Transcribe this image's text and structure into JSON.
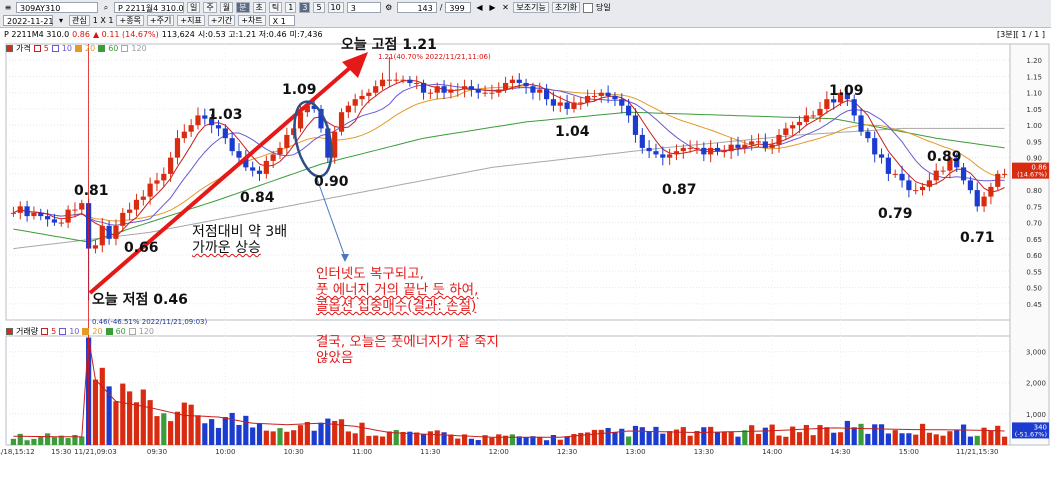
{
  "toolbar": {
    "code": "309AY310",
    "name": "P 2211월4 310.0",
    "date": "2022-11-21",
    "interest_label": "관심",
    "interval_label": "1 X 1",
    "btns": [
      "+종목",
      "+주기",
      "+지표",
      "+기간",
      "+차트"
    ],
    "period_tabs": [
      "일",
      "주",
      "월",
      "분",
      "초",
      "틱"
    ],
    "active_period": "분",
    "intervals": [
      "1",
      "3",
      "5",
      "10"
    ],
    "active_interval": "3",
    "interval_select": "3",
    "count": "143",
    "total": "399",
    "view_label": "보조기능",
    "reset_label": "초기화",
    "single_label": "당일",
    "zoom": "X 1"
  },
  "info": {
    "symbol": "P 2211M4 310.0",
    "price": "0.86",
    "change": "▲ 0.11 (14.67%)",
    "volume": "113,624",
    "ohlc": "시:0.53 고:1.21 저:0.46",
    "di": "미:7,436",
    "page": "[3분][ 1 / 1 ]"
  },
  "legend_price": {
    "label": "가격",
    "ma": [
      "5",
      "10",
      "20",
      "60",
      "120"
    ]
  },
  "legend_volume": {
    "label": "거래량",
    "ma": [
      "5",
      "10",
      "20",
      "60",
      "120"
    ]
  },
  "colors": {
    "up": "#d92b10",
    "down": "#1c3ccf",
    "ma5": "#c71f1f",
    "ma10": "#6a5ad6",
    "ma20": "#e39a28",
    "ma60": "#3c9c3a",
    "ma120": "#a8a8a8"
  },
  "chart_data": {
    "type": "candlestick",
    "interval": "3m",
    "ylim": [
      0.4,
      1.25
    ],
    "yticks": [
      0.45,
      0.5,
      0.55,
      0.6,
      0.65,
      0.7,
      0.75,
      0.8,
      0.85,
      0.9,
      0.95,
      1.0,
      1.05,
      1.1,
      1.15,
      1.2
    ],
    "volume_ylim": [
      0,
      3500
    ],
    "volume_ticks": [
      1000,
      2000,
      3000
    ],
    "time_labels": [
      {
        "i": 0,
        "t": "11/18,15:12"
      },
      {
        "i": 7,
        "t": "15:30"
      },
      {
        "i": 12,
        "t": "11/21,09:03"
      },
      {
        "i": 21,
        "t": "09:30"
      },
      {
        "i": 31,
        "t": "10:00"
      },
      {
        "i": 41,
        "t": "10:30"
      },
      {
        "i": 51,
        "t": "11:00"
      },
      {
        "i": 61,
        "t": "11:30"
      },
      {
        "i": 71,
        "t": "12:00"
      },
      {
        "i": 81,
        "t": "12:30"
      },
      {
        "i": 91,
        "t": "13:00"
      },
      {
        "i": 101,
        "t": "13:30"
      },
      {
        "i": 111,
        "t": "14:00"
      },
      {
        "i": 121,
        "t": "14:30"
      },
      {
        "i": 131,
        "t": "15:00"
      },
      {
        "i": 141,
        "t": "11/21,15:30"
      }
    ],
    "anchors": [
      [
        0,
        0.74
      ],
      [
        4,
        0.72
      ],
      [
        6,
        0.7
      ],
      [
        10,
        0.76
      ],
      [
        11,
        0.47
      ],
      [
        12,
        0.62
      ],
      [
        13,
        0.7
      ],
      [
        14,
        0.66
      ],
      [
        18,
        0.77
      ],
      [
        22,
        0.85
      ],
      [
        24,
        0.95
      ],
      [
        27,
        1.02
      ],
      [
        30,
        0.98
      ],
      [
        34,
        0.88
      ],
      [
        36,
        0.84
      ],
      [
        38,
        0.91
      ],
      [
        42,
        1.04
      ],
      [
        44,
        1.06
      ],
      [
        45,
        0.98
      ],
      [
        46,
        0.91
      ],
      [
        48,
        1.05
      ],
      [
        51,
        1.1
      ],
      [
        55,
        1.15
      ],
      [
        60,
        1.11
      ],
      [
        65,
        1.12
      ],
      [
        69,
        1.09
      ],
      [
        73,
        1.13
      ],
      [
        77,
        1.1
      ],
      [
        81,
        1.05
      ],
      [
        83,
        1.06
      ],
      [
        86,
        1.1
      ],
      [
        89,
        1.07
      ],
      [
        92,
        0.93
      ],
      [
        95,
        0.89
      ],
      [
        99,
        0.93
      ],
      [
        103,
        0.91
      ],
      [
        107,
        0.94
      ],
      [
        111,
        0.94
      ],
      [
        114,
        1.0
      ],
      [
        118,
        1.05
      ],
      [
        121,
        1.09
      ],
      [
        123,
        1.04
      ],
      [
        125,
        0.95
      ],
      [
        128,
        0.86
      ],
      [
        131,
        0.81
      ],
      [
        133,
        0.8
      ],
      [
        135,
        0.85
      ],
      [
        137,
        0.89
      ],
      [
        139,
        0.84
      ],
      [
        141,
        0.76
      ],
      [
        143,
        0.82
      ],
      [
        145,
        0.86
      ]
    ],
    "volume_profile": [
      [
        0,
        280
      ],
      [
        10,
        260
      ],
      [
        11,
        3450
      ],
      [
        12,
        2100
      ],
      [
        15,
        1400
      ],
      [
        20,
        1200
      ],
      [
        25,
        950
      ],
      [
        30,
        900
      ],
      [
        35,
        700
      ],
      [
        40,
        650
      ],
      [
        45,
        700
      ],
      [
        50,
        600
      ],
      [
        55,
        400
      ],
      [
        60,
        350
      ],
      [
        70,
        250
      ],
      [
        80,
        250
      ],
      [
        90,
        450
      ],
      [
        100,
        400
      ],
      [
        110,
        450
      ],
      [
        120,
        550
      ],
      [
        130,
        500
      ],
      [
        140,
        480
      ],
      [
        145,
        450
      ]
    ],
    "volume_spikes": [
      [
        0,
        2
      ],
      [
        13,
        0
      ],
      [
        20,
        0
      ],
      [
        31,
        0
      ],
      [
        41,
        0
      ]
    ],
    "ma_levels": {
      "ma60": [
        [
          0,
          0.68
        ],
        [
          11,
          0.64
        ],
        [
          30,
          0.77
        ],
        [
          45,
          0.88
        ],
        [
          60,
          0.96
        ],
        [
          75,
          1.01
        ],
        [
          90,
          1.04
        ],
        [
          105,
          1.03
        ],
        [
          120,
          1.02
        ],
        [
          135,
          0.96
        ],
        [
          145,
          0.93
        ]
      ],
      "ma120": [
        [
          0,
          0.62
        ],
        [
          20,
          0.67
        ],
        [
          45,
          0.77
        ],
        [
          70,
          0.87
        ],
        [
          95,
          0.93
        ],
        [
          115,
          0.97
        ],
        [
          130,
          0.99
        ],
        [
          145,
          0.99
        ]
      ]
    },
    "annotations": {
      "high_label": "오늘 고점 1.21",
      "high_small": "1.21(40.70% 2022/11/21,11:06)",
      "low_label": "오늘 저점 0.46",
      "low_small": "0.46(-46.51% 2022/11/21,09:03)",
      "peaks": [
        {
          "text": "0.81",
          "i": 12
        },
        {
          "text": "0.66",
          "i": 17
        },
        {
          "text": "1.03",
          "i": 28
        },
        {
          "text": "0.84",
          "i": 34
        },
        {
          "text": "1.09",
          "i": 42
        },
        {
          "text": "0.90",
          "i": 46
        },
        {
          "text": "1.04",
          "i": 81
        },
        {
          "text": "0.87",
          "i": 96
        },
        {
          "text": "1.09",
          "i": 120
        },
        {
          "text": "0.89",
          "i": 135
        },
        {
          "text": "0.79",
          "i": 131
        },
        {
          "text": "0.71",
          "i": 140
        }
      ],
      "mid_label_1": "저점대비 약 3배",
      "mid_label_2": "가까운 상승",
      "red_note": [
        "인터넷도 복구되고,",
        "풋 에너지 거의 끝난 듯 하여,",
        "콜옵션 집중매수(결과: 손절)"
      ],
      "dark_note": [
        "결국, 오늘은 풋에너지가 잘 죽지",
        "않았음"
      ]
    },
    "price_tag": "0.86",
    "price_tag_pct": "(14.67%)",
    "volume_tag": "340",
    "volume_tag_pct": "(-51.67%)"
  }
}
